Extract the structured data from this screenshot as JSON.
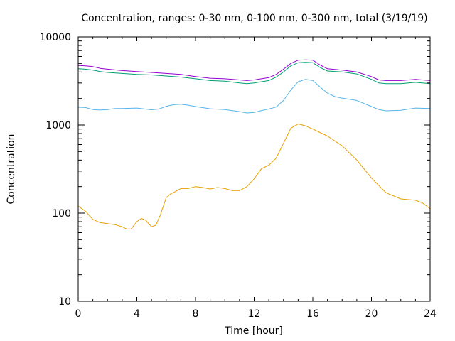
{
  "chart_data": {
    "type": "line",
    "title": "Concentration, ranges: 0-30 nm, 0-100 nm, 0-300 nm, total (3/19/19)",
    "xlabel": "Time [hour]",
    "ylabel": "Concentration",
    "xlim": [
      0,
      24
    ],
    "ylim": [
      10,
      10000
    ],
    "yscale": "log",
    "grid": false,
    "legend": "none",
    "x_ticks": [
      0,
      4,
      8,
      12,
      16,
      20,
      24
    ],
    "x_tick_labels": [
      "0",
      "4",
      "8",
      "12",
      "16",
      "20",
      "24"
    ],
    "y_ticks": [
      10,
      100,
      1000,
      10000
    ],
    "y_tick_labels": [
      "10",
      "100",
      "1000",
      "10000"
    ],
    "series": [
      {
        "color": "#e69f00",
        "x": [
          0,
          0.5,
          1,
          1.5,
          2,
          2.5,
          3,
          3.3,
          3.6,
          4,
          4.3,
          4.6,
          5,
          5.3,
          5.6,
          6,
          6.3,
          6.6,
          7,
          7.5,
          8,
          8.5,
          9,
          9.5,
          10,
          10.5,
          11,
          11.5,
          12,
          12.5,
          13,
          13.5,
          14,
          14.5,
          15,
          15.5,
          16,
          17,
          18,
          19,
          20,
          21,
          22,
          23,
          23.5,
          24
        ],
        "y": [
          120,
          105,
          85,
          78,
          76,
          74,
          70,
          66,
          66,
          80,
          87,
          83,
          70,
          73,
          95,
          150,
          165,
          175,
          190,
          190,
          200,
          195,
          188,
          195,
          190,
          180,
          180,
          200,
          245,
          320,
          350,
          420,
          620,
          920,
          1030,
          980,
          900,
          750,
          580,
          400,
          250,
          170,
          145,
          140,
          130,
          112
        ]
      },
      {
        "color": "#56b4e9",
        "x": [
          0,
          0.5,
          1,
          1.5,
          2,
          2.5,
          3,
          4,
          5,
          5.5,
          6,
          6.5,
          7,
          7.5,
          8,
          9,
          10,
          11,
          11.5,
          12,
          12.5,
          13,
          13.5,
          14,
          14.5,
          15,
          15.5,
          16,
          16.5,
          17,
          17.5,
          18,
          19,
          20,
          20.5,
          21,
          22,
          23,
          24
        ],
        "y": [
          1590,
          1580,
          1500,
          1480,
          1500,
          1540,
          1540,
          1560,
          1490,
          1520,
          1630,
          1700,
          1720,
          1680,
          1620,
          1530,
          1500,
          1420,
          1370,
          1390,
          1460,
          1520,
          1600,
          1900,
          2500,
          3100,
          3300,
          3200,
          2700,
          2300,
          2100,
          2020,
          1900,
          1620,
          1500,
          1450,
          1470,
          1560,
          1540
        ]
      },
      {
        "color": "#009e73",
        "x": [
          0,
          0.5,
          1,
          1.5,
          2,
          3,
          4,
          5,
          6,
          7,
          8,
          9,
          10,
          11,
          11.5,
          12,
          13,
          13.5,
          14,
          14.5,
          15,
          15.5,
          16,
          16.5,
          17,
          18,
          19,
          20,
          20.5,
          21,
          22,
          23,
          24
        ],
        "y": [
          4350,
          4300,
          4200,
          4050,
          3950,
          3850,
          3750,
          3700,
          3600,
          3500,
          3350,
          3200,
          3150,
          3000,
          2950,
          3000,
          3200,
          3500,
          4000,
          4700,
          5100,
          5150,
          5100,
          4500,
          4100,
          4000,
          3800,
          3300,
          3000,
          2950,
          2950,
          3050,
          2950
        ]
      },
      {
        "color": "#9400d3",
        "x": [
          0,
          0.5,
          1,
          1.5,
          2,
          3,
          4,
          5,
          6,
          7,
          8,
          9,
          10,
          11,
          11.5,
          12,
          13,
          13.5,
          14,
          14.5,
          15,
          15.5,
          16,
          16.5,
          17,
          18,
          19,
          20,
          20.5,
          21,
          22,
          23,
          24
        ],
        "y": [
          4750,
          4700,
          4600,
          4400,
          4300,
          4150,
          4050,
          3950,
          3850,
          3750,
          3550,
          3400,
          3350,
          3250,
          3200,
          3250,
          3450,
          3750,
          4300,
          5000,
          5450,
          5500,
          5450,
          4800,
          4350,
          4200,
          4000,
          3550,
          3250,
          3200,
          3200,
          3300,
          3200
        ]
      }
    ]
  }
}
